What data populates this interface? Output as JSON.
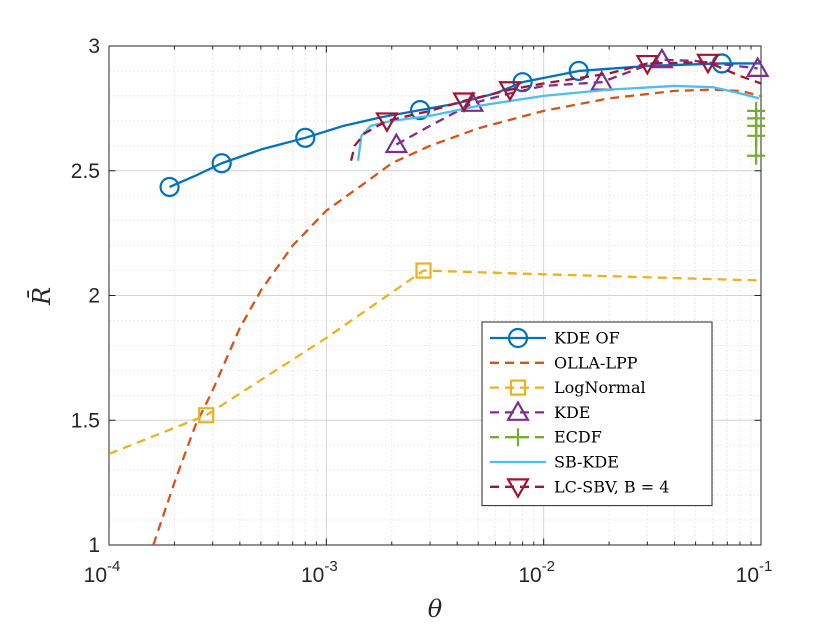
{
  "chart_data": {
    "type": "line",
    "xscale": "log",
    "xlim": [
      0.0001,
      0.1
    ],
    "ylim": [
      1,
      3
    ],
    "xlabel": "θ",
    "ylabel": "R̄",
    "grid": true,
    "minor_grid": true,
    "legend_position": "bottom-right",
    "x_ticks": [
      {
        "value": 0.0001,
        "base": "10",
        "exp": "-4"
      },
      {
        "value": 0.001,
        "base": "10",
        "exp": "-3"
      },
      {
        "value": 0.01,
        "base": "10",
        "exp": "-2"
      },
      {
        "value": 0.1,
        "base": "10",
        "exp": "-1"
      }
    ],
    "y_ticks": [
      {
        "value": 1,
        "label": "1"
      },
      {
        "value": 1.5,
        "label": "1.5"
      },
      {
        "value": 2,
        "label": "2"
      },
      {
        "value": 2.5,
        "label": "2.5"
      },
      {
        "value": 3,
        "label": "3"
      }
    ],
    "series": [
      {
        "name": "KDE OF",
        "color": "#0072BD",
        "line": "solid",
        "marker": "circle",
        "points": [
          [
            0.00019,
            2.435
          ],
          [
            0.00025,
            2.48
          ],
          [
            0.00033,
            2.53
          ],
          [
            0.0005,
            2.585
          ],
          [
            0.0008,
            2.632
          ],
          [
            0.0012,
            2.68
          ],
          [
            0.0018,
            2.715
          ],
          [
            0.0027,
            2.743
          ],
          [
            0.004,
            2.77
          ],
          [
            0.006,
            2.81
          ],
          [
            0.008,
            2.855
          ],
          [
            0.0145,
            2.9
          ],
          [
            0.03,
            2.92
          ],
          [
            0.066,
            2.93
          ],
          [
            0.1,
            2.93
          ]
        ],
        "marker_points": [
          [
            0.00019,
            2.435
          ],
          [
            0.00033,
            2.53
          ],
          [
            0.0008,
            2.632
          ],
          [
            0.0027,
            2.743
          ],
          [
            0.008,
            2.855
          ],
          [
            0.0145,
            2.9
          ],
          [
            0.066,
            2.93
          ]
        ]
      },
      {
        "name": "OLLA-LPP",
        "color": "#D95319",
        "line": "dashed",
        "marker": "none",
        "points": [
          [
            0.00016,
            1.0
          ],
          [
            0.0002,
            1.25
          ],
          [
            0.00025,
            1.48
          ],
          [
            0.0003,
            1.62
          ],
          [
            0.0004,
            1.87
          ],
          [
            0.0005,
            2.02
          ],
          [
            0.0007,
            2.2
          ],
          [
            0.001,
            2.34
          ],
          [
            0.0015,
            2.45
          ],
          [
            0.002,
            2.53
          ],
          [
            0.003,
            2.6
          ],
          [
            0.005,
            2.67
          ],
          [
            0.01,
            2.74
          ],
          [
            0.02,
            2.79
          ],
          [
            0.04,
            2.82
          ],
          [
            0.06,
            2.825
          ],
          [
            0.08,
            2.82
          ],
          [
            0.1,
            2.8
          ]
        ]
      },
      {
        "name": "LogNormal",
        "color": "#EDB120",
        "line": "dashed",
        "marker": "square",
        "points": [
          [
            0.0001,
            1.365
          ],
          [
            0.00028,
            1.52
          ],
          [
            0.001,
            1.83
          ],
          [
            0.0028,
            2.1
          ],
          [
            0.01,
            2.085
          ],
          [
            0.1,
            2.06
          ]
        ],
        "marker_points": [
          [
            0.00028,
            1.52
          ],
          [
            0.0028,
            2.1
          ]
        ]
      },
      {
        "name": "KDE",
        "color": "#7E2F8E",
        "line": "dashed",
        "marker": "triangle-up",
        "points": [
          [
            0.0021,
            2.605
          ],
          [
            0.003,
            2.68
          ],
          [
            0.0047,
            2.77
          ],
          [
            0.007,
            2.81
          ],
          [
            0.01,
            2.84
          ],
          [
            0.0185,
            2.855
          ],
          [
            0.035,
            2.945
          ],
          [
            0.05,
            2.94
          ],
          [
            0.0965,
            2.91
          ]
        ],
        "marker_points": [
          [
            0.0021,
            2.605
          ],
          [
            0.0047,
            2.77
          ],
          [
            0.0185,
            2.855
          ],
          [
            0.035,
            2.945
          ],
          [
            0.0965,
            2.91
          ]
        ]
      },
      {
        "name": "ECDF",
        "color": "#77AC30",
        "line": "dashed",
        "marker": "plus",
        "points": [
          [
            0.095,
            2.75
          ],
          [
            0.095,
            2.56
          ]
        ],
        "marker_points": [
          [
            0.095,
            2.74
          ],
          [
            0.095,
            2.71
          ],
          [
            0.095,
            2.68
          ],
          [
            0.095,
            2.64
          ],
          [
            0.095,
            2.56
          ]
        ]
      },
      {
        "name": "SB-KDE",
        "color": "#4DBEEE",
        "line": "solid",
        "marker": "none",
        "points": [
          [
            0.0014,
            2.54
          ],
          [
            0.00145,
            2.64
          ],
          [
            0.0016,
            2.68
          ],
          [
            0.002,
            2.7
          ],
          [
            0.003,
            2.72
          ],
          [
            0.005,
            2.76
          ],
          [
            0.01,
            2.8
          ],
          [
            0.02,
            2.825
          ],
          [
            0.04,
            2.84
          ],
          [
            0.06,
            2.835
          ],
          [
            0.08,
            2.81
          ],
          [
            0.098,
            2.79
          ]
        ]
      },
      {
        "name": "LC-SBV, B = 4",
        "color": "#A2142F",
        "line": "dashed",
        "marker": "triangle-down",
        "points": [
          [
            0.0013,
            2.54
          ],
          [
            0.00135,
            2.6
          ],
          [
            0.0015,
            2.65
          ],
          [
            0.0019,
            2.7
          ],
          [
            0.003,
            2.74
          ],
          [
            0.0043,
            2.78
          ],
          [
            0.007,
            2.825
          ],
          [
            0.01,
            2.85
          ],
          [
            0.02,
            2.89
          ],
          [
            0.03,
            2.93
          ],
          [
            0.057,
            2.935
          ],
          [
            0.08,
            2.88
          ],
          [
            0.1,
            2.85
          ]
        ],
        "marker_points": [
          [
            0.0019,
            2.7
          ],
          [
            0.0043,
            2.78
          ],
          [
            0.007,
            2.825
          ],
          [
            0.03,
            2.93
          ],
          [
            0.057,
            2.935
          ]
        ]
      }
    ]
  }
}
